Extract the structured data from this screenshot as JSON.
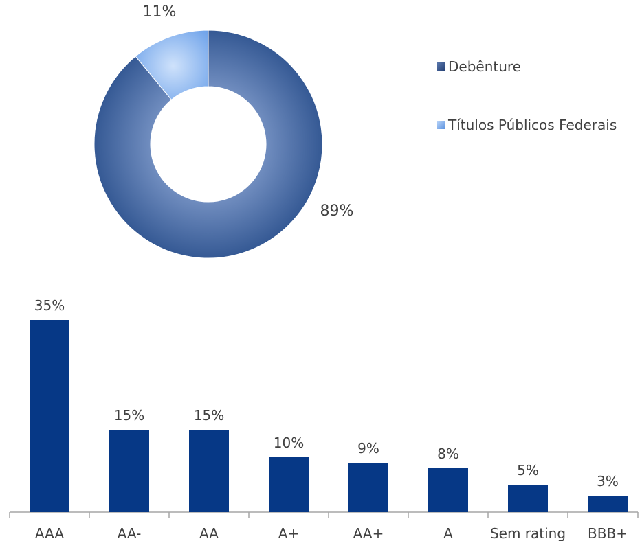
{
  "chart_data": [
    {
      "type": "pie",
      "variant": "donut",
      "series": [
        {
          "name": "Debênture",
          "value": 89,
          "label": "89%",
          "color": "#3b5f9c"
        },
        {
          "name": "Títulos Públicos Federais",
          "value": 11,
          "label": "11%",
          "color": "#7fb0ef"
        }
      ],
      "legend": "right"
    },
    {
      "type": "bar",
      "categories": [
        "AAA",
        "AA-",
        "AA",
        "A+",
        "AA+",
        "A",
        "Sem rating",
        "BBB+"
      ],
      "values": [
        35,
        15,
        15,
        10,
        9,
        8,
        5,
        3
      ],
      "value_labels": [
        "35%",
        "15%",
        "15%",
        "10%",
        "9%",
        "8%",
        "5%",
        "3%"
      ],
      "bar_color": "#063886",
      "ylim": [
        0,
        35
      ],
      "grid": false
    }
  ]
}
